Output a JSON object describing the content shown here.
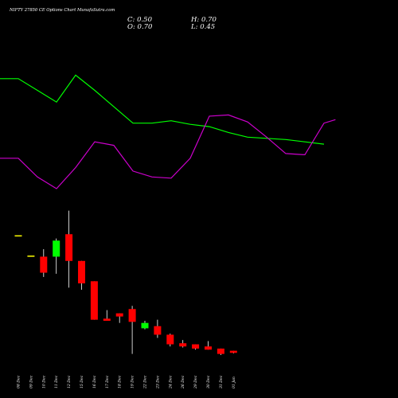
{
  "header": {
    "title": "NIFTY 27850  CE Options  Chart MunafaSutra.com",
    "close_label": "C: 0.50",
    "open_label": "O: 0.70",
    "high_label": "H: 0.70",
    "low_label": "L: 0.45"
  },
  "colors": {
    "background": "#000000",
    "up": "#00ff00",
    "down": "#ff0000",
    "neutral": "#ffff00",
    "wick": "#ffffff",
    "line_green": "#00ff00",
    "line_magenta": "#cc00cc"
  },
  "chart_data": {
    "type": "candlestick",
    "categories": [
      "08 Dec",
      "09 Dec",
      "10 Dec",
      "11 Dec",
      "12 Dec",
      "15 Dec",
      "16 Dec",
      "17 Dec",
      "18 Dec",
      "19 Dec",
      "22 Dec",
      "23 Dec",
      "24 Dec",
      "26 Dec",
      "29 Dec",
      "30 Dec",
      "31 Dec",
      "01 Jan"
    ],
    "candles": [
      {
        "open": 11.5,
        "high": 11.5,
        "low": 11.5,
        "close": 11.5
      },
      {
        "open": 9.6,
        "high": 9.6,
        "low": 9.6,
        "close": 9.6
      },
      {
        "open": 9.5,
        "high": 10.2,
        "low": 7.6,
        "close": 8.0
      },
      {
        "open": 9.5,
        "high": 11.2,
        "low": 7.9,
        "close": 11.0
      },
      {
        "open": 11.6,
        "high": 13.8,
        "low": 6.6,
        "close": 9.1
      },
      {
        "open": 9.1,
        "high": 9.1,
        "low": 6.4,
        "close": 7.0
      },
      {
        "open": 7.2,
        "high": 7.2,
        "low": 3.6,
        "close": 3.6
      },
      {
        "open": 3.7,
        "high": 4.5,
        "low": 3.6,
        "close": 3.5
      },
      {
        "open": 4.2,
        "high": 4.2,
        "low": 3.3,
        "close": 3.9
      },
      {
        "open": 4.6,
        "high": 4.9,
        "low": 0.4,
        "close": 3.4
      },
      {
        "open": 2.8,
        "high": 3.5,
        "low": 2.7,
        "close": 3.3
      },
      {
        "open": 3.0,
        "high": 3.6,
        "low": 1.9,
        "close": 2.2
      },
      {
        "open": 2.2,
        "high": 2.3,
        "low": 1.1,
        "close": 1.3
      },
      {
        "open": 1.4,
        "high": 1.7,
        "low": 1.0,
        "close": 1.1
      },
      {
        "open": 1.3,
        "high": 1.3,
        "low": 0.8,
        "close": 0.9
      },
      {
        "open": 1.1,
        "high": 1.6,
        "low": 0.8,
        "close": 0.8
      },
      {
        "open": 0.9,
        "high": 0.9,
        "low": 0.3,
        "close": 0.4
      },
      {
        "open": 0.7,
        "high": 0.7,
        "low": 0.45,
        "close": 0.5
      }
    ],
    "line_green": [
      0.06,
      0.06,
      0.16,
      0.26,
      0.03,
      0.16,
      0.3,
      0.44,
      0.44,
      0.42,
      0.45,
      0.47,
      0.52,
      0.56,
      0.57,
      0.58,
      0.6,
      0.62
    ],
    "line_magenta": [
      0.74,
      0.74,
      0.9,
      1.0,
      0.82,
      0.6,
      0.63,
      0.85,
      0.9,
      0.91,
      0.74,
      0.38,
      0.37,
      0.43,
      0.56,
      0.7,
      0.71,
      0.44,
      0.41
    ],
    "line_magenta_x": [
      0,
      1,
      2,
      3,
      4,
      5,
      6,
      7,
      8,
      9,
      10,
      11,
      12,
      13,
      14,
      15,
      16,
      17,
      17.6
    ],
    "ylim": [
      0,
      14
    ]
  }
}
